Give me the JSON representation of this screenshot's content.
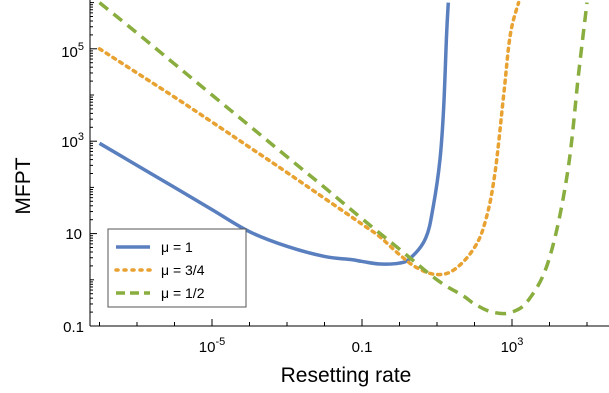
{
  "chart_data": {
    "type": "line",
    "title": "",
    "xlabel": "Resetting rate",
    "ylabel": "MFPT",
    "xscale": "log",
    "yscale": "log",
    "xlim": [
      1e-08,
      100000
    ],
    "ylim": [
      0.1,
      1000000
    ],
    "grid": false,
    "legend_position": "lower-left",
    "x_ticks": [
      {
        "value": 1e-05,
        "base": "10",
        "exp": "-5"
      },
      {
        "value": 0.1,
        "base": "0.1",
        "exp": ""
      },
      {
        "value": 1000,
        "base": "10",
        "exp": "3"
      }
    ],
    "y_ticks": [
      {
        "value": 0.1,
        "base": "0.1",
        "exp": ""
      },
      {
        "value": 10,
        "base": "10",
        "exp": ""
      },
      {
        "value": 1000,
        "base": "10",
        "exp": "3"
      },
      {
        "value": 100000,
        "base": "10",
        "exp": "5"
      }
    ],
    "series": [
      {
        "name": "μ = 1",
        "color": "#5a7fbf",
        "style": "solid",
        "x": [
          1e-08,
          1e-07,
          1e-06,
          1e-05,
          0.0001,
          0.001,
          0.01,
          0.05,
          0.1,
          0.3,
          1,
          2,
          5,
          8,
          12,
          15,
          18,
          20
        ],
        "y": [
          900,
          300,
          100,
          33,
          11,
          5.3,
          3.2,
          2.75,
          2.5,
          2.2,
          2.3,
          3,
          8,
          40,
          400,
          5000,
          200000,
          1000000
        ]
      },
      {
        "name": "μ = 3/4",
        "color": "#e8a231",
        "style": "dotted",
        "x": [
          1e-08,
          1e-07,
          1e-06,
          1e-05,
          0.0001,
          0.001,
          0.01,
          0.1,
          0.3,
          1,
          3,
          10,
          30,
          100,
          200,
          350,
          600,
          900,
          1500
        ],
        "y": [
          100000,
          30000,
          9000,
          2600,
          740,
          210,
          58,
          16,
          8.5,
          3.5,
          1.8,
          1.3,
          1.7,
          5,
          20,
          200,
          10000,
          200000,
          1000000
        ]
      },
      {
        "name": "μ = 1/2",
        "color": "#89ad3e",
        "style": "dashed",
        "x": [
          1e-08,
          1e-07,
          1e-06,
          1e-05,
          0.0001,
          0.001,
          0.01,
          0.1,
          1,
          10,
          50,
          100,
          300,
          1000,
          3000,
          10000,
          30000,
          60000,
          100000
        ],
        "y": [
          1000000,
          220000,
          47000,
          10000,
          2150,
          460,
          100,
          21,
          4.6,
          1,
          0.45,
          0.3,
          0.2,
          0.2,
          0.4,
          3,
          200,
          30000,
          1000000
        ]
      }
    ]
  }
}
